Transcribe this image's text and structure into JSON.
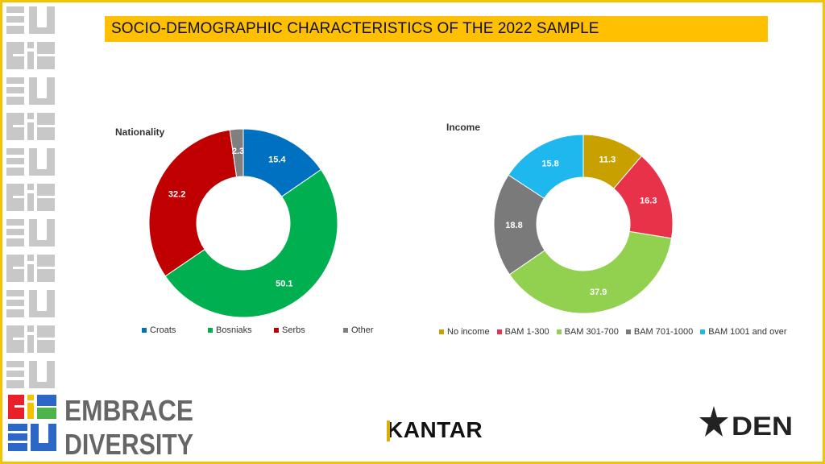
{
  "title": "SOCIO-DEMOGRAPHIC CHARACTERISTICS OF THE 2022 SAMPLE",
  "brand": {
    "left_logo_line1": "EMBRACE",
    "left_logo_line2": "DIVERSITY",
    "center_logo": "KANTAR",
    "right_logo": "DEN"
  },
  "colors": {
    "title_bar": "#fec000",
    "frame": "#f3c200"
  },
  "chart_data": [
    {
      "type": "pie",
      "title": "Nationality",
      "donut": true,
      "categories": [
        "Croats",
        "Bosniaks",
        "Serbs",
        "Other"
      ],
      "values": [
        15.4,
        50.1,
        32.2,
        2.3
      ],
      "colors": [
        "#0070c0",
        "#00b050",
        "#c00000",
        "#7f7f7f"
      ],
      "data_labels": [
        "15.4",
        "50.1",
        "32.2",
        "2.3"
      ],
      "legend_position": "bottom"
    },
    {
      "type": "pie",
      "title": "Income",
      "donut": true,
      "categories": [
        "No income",
        "BAM 1-300",
        "BAM 301-700",
        "BAM 701-1000",
        "BAM 1001 and over"
      ],
      "values": [
        11.3,
        16.3,
        37.9,
        18.8,
        15.8
      ],
      "colors": [
        "#c8a000",
        "#e8324a",
        "#92d050",
        "#7a7a7a",
        "#1fb8ee"
      ],
      "data_labels": [
        "11.3",
        "16.3",
        "37.9",
        "18.8",
        "15.8"
      ],
      "legend_position": "bottom"
    }
  ]
}
